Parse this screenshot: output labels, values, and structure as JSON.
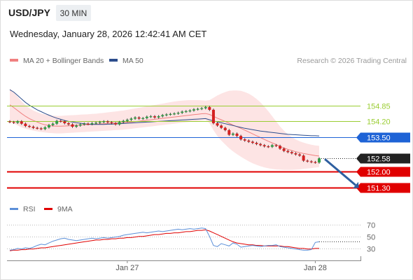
{
  "header": {
    "symbol": "USD/JPY",
    "timeframe": "30 MIN",
    "datetime": "Wednesday, January 28, 2026 12:42:41 AM CET"
  },
  "colors": {
    "ma20": "#f08080",
    "ma50": "#2c4d8c",
    "bollinger_fill": "#fde4e4",
    "level_green": "#9acd32",
    "level_blue": "#1e63d6",
    "level_red": "#e00000",
    "level_dark": "#222222",
    "candle_up": "#2ea043",
    "candle_down": "#d42020",
    "rsi": "#5b8fd8",
    "rsi_ma": "#e00000",
    "arrow": "#2e5fa0"
  },
  "chart_data": [
    {
      "type": "line",
      "panel": "price",
      "legend": [
        {
          "label": "MA 20 + Bollinger Bands"
        },
        {
          "label": "MA 50"
        }
      ],
      "watermark": "Research © 2026 Trading Central",
      "ylim": [
        150.8,
        156.1
      ],
      "x_tick_labels": [
        {
          "label": "Jan 27",
          "index": 30
        },
        {
          "label": "Jan 28",
          "index": 78
        }
      ],
      "n_bars": 80,
      "levels": [
        {
          "value": 154.85,
          "label": "154.85",
          "style": "green"
        },
        {
          "value": 154.2,
          "label": "154.20",
          "style": "green"
        },
        {
          "value": 153.5,
          "label": "153.50",
          "style": "blue"
        },
        {
          "value": 152.58,
          "label": "152.58",
          "style": "dark"
        },
        {
          "value": 152.0,
          "label": "152.00",
          "style": "red"
        },
        {
          "value": 151.3,
          "label": "151.30",
          "style": "red"
        }
      ],
      "close": [
        154.15,
        154.12,
        154.18,
        154.08,
        153.98,
        153.95,
        153.9,
        153.88,
        153.85,
        153.92,
        154.02,
        154.08,
        154.2,
        154.18,
        154.1,
        154.05,
        153.95,
        154.0,
        154.05,
        154.08,
        154.06,
        154.1,
        154.12,
        154.15,
        154.18,
        154.14,
        154.1,
        154.05,
        154.15,
        154.2,
        154.25,
        154.3,
        154.35,
        154.3,
        154.32,
        154.38,
        154.4,
        154.35,
        154.4,
        154.45,
        154.48,
        154.5,
        154.52,
        154.55,
        154.6,
        154.62,
        154.65,
        154.7,
        154.72,
        154.75,
        154.8,
        154.68,
        154.1,
        154.0,
        153.9,
        153.8,
        153.6,
        153.65,
        153.55,
        153.4,
        153.35,
        153.3,
        153.25,
        153.2,
        153.15,
        153.1,
        153.08,
        153.15,
        153.12,
        153.0,
        152.9,
        152.85,
        152.8,
        152.75,
        152.7,
        152.48,
        152.45,
        152.42,
        152.4,
        152.58
      ],
      "ma50": [
        155.55,
        155.45,
        155.3,
        155.15,
        155.0,
        154.88,
        154.78,
        154.68,
        154.6,
        154.52,
        154.45,
        154.38,
        154.32,
        154.27,
        154.22,
        154.18,
        154.15,
        154.12,
        154.1,
        154.08,
        154.06,
        154.05,
        154.05,
        154.05,
        154.05,
        154.06,
        154.06,
        154.07,
        154.08,
        154.09,
        154.1,
        154.11,
        154.12,
        154.13,
        154.14,
        154.15,
        154.16,
        154.17,
        154.18,
        154.19,
        154.2,
        154.21,
        154.22,
        154.23,
        154.24,
        154.25,
        154.26,
        154.27,
        154.28,
        154.29,
        154.3,
        154.25,
        154.2,
        154.16,
        154.12,
        154.08,
        154.04,
        154.0,
        153.96,
        153.92,
        153.88,
        153.85,
        153.82,
        153.79,
        153.76,
        153.74,
        153.72,
        153.7,
        153.68,
        153.66,
        153.64,
        153.62,
        153.61,
        153.6,
        153.59,
        153.58,
        153.57,
        153.56,
        153.56,
        153.55
      ],
      "ma20": [
        154.9,
        154.78,
        154.65,
        154.52,
        154.4,
        154.3,
        154.22,
        154.15,
        154.08,
        154.03,
        154.0,
        153.98,
        153.97,
        153.97,
        153.98,
        153.99,
        154.0,
        154.01,
        154.02,
        154.03,
        154.04,
        154.05,
        154.06,
        154.07,
        154.08,
        154.09,
        154.1,
        154.11,
        154.12,
        154.13,
        154.14,
        154.15,
        154.17,
        154.19,
        154.21,
        154.23,
        154.25,
        154.27,
        154.29,
        154.31,
        154.33,
        154.35,
        154.37,
        154.39,
        154.41,
        154.43,
        154.45,
        154.47,
        154.49,
        154.51,
        154.52,
        154.48,
        154.4,
        154.32,
        154.25,
        154.18,
        154.1,
        154.02,
        153.95,
        153.88,
        153.8,
        153.72,
        153.64,
        153.56,
        153.48,
        153.4,
        153.32,
        153.25,
        153.18,
        153.1,
        153.03,
        152.97,
        152.92,
        152.87,
        152.83,
        152.79,
        152.76,
        152.73,
        152.7,
        152.68
      ],
      "bb_upper": [
        155.6,
        155.45,
        155.25,
        155.05,
        154.88,
        154.75,
        154.65,
        154.58,
        154.52,
        154.48,
        154.45,
        154.43,
        154.42,
        154.42,
        154.43,
        154.44,
        154.45,
        154.46,
        154.47,
        154.48,
        154.49,
        154.5,
        154.51,
        154.53,
        154.55,
        154.57,
        154.59,
        154.61,
        154.63,
        154.65,
        154.68,
        154.71,
        154.74,
        154.77,
        154.8,
        154.83,
        154.86,
        154.89,
        154.92,
        154.95,
        154.98,
        155.01,
        155.04,
        155.06,
        155.08,
        155.09,
        155.1,
        155.1,
        155.1,
        155.09,
        155.08,
        155.1,
        155.2,
        155.3,
        155.38,
        155.45,
        155.5,
        155.52,
        155.52,
        155.5,
        155.45,
        155.38,
        155.28,
        155.15,
        155.0,
        154.82,
        154.62,
        154.4,
        154.18,
        153.96,
        153.78,
        153.62,
        153.5,
        153.4,
        153.32,
        153.26,
        153.21,
        153.17,
        153.14,
        153.12
      ],
      "bb_lower": [
        154.2,
        154.1,
        154.0,
        153.92,
        153.86,
        153.82,
        153.78,
        153.75,
        153.72,
        153.7,
        153.68,
        153.67,
        153.66,
        153.66,
        153.67,
        153.68,
        153.69,
        153.7,
        153.71,
        153.72,
        153.73,
        153.74,
        153.75,
        153.76,
        153.77,
        153.78,
        153.79,
        153.8,
        153.81,
        153.82,
        153.84,
        153.86,
        153.88,
        153.9,
        153.92,
        153.94,
        153.96,
        153.98,
        154.0,
        154.02,
        154.04,
        154.06,
        154.08,
        154.1,
        154.12,
        154.14,
        154.16,
        154.18,
        154.2,
        154.22,
        154.24,
        154.1,
        153.8,
        153.55,
        153.35,
        153.18,
        153.02,
        152.88,
        152.76,
        152.65,
        152.55,
        152.45,
        152.37,
        152.3,
        152.24,
        152.19,
        152.15,
        152.12,
        152.1,
        152.09,
        152.08,
        152.08,
        152.08,
        152.09,
        152.1,
        152.12,
        152.14,
        152.16,
        152.18,
        152.2
      ],
      "forecast_arrow": {
        "from": 152.58,
        "to": 151.3
      }
    },
    {
      "type": "line",
      "panel": "rsi",
      "legend": [
        {
          "label": "RSI"
        },
        {
          "label": "9MA"
        }
      ],
      "ylim": [
        10,
        80
      ],
      "y_ticks": [
        70,
        50,
        30
      ],
      "rsi": [
        27,
        28,
        30,
        29,
        31,
        30,
        32,
        35,
        37,
        36,
        39,
        42,
        44,
        46,
        47,
        45,
        44,
        43,
        44,
        45,
        46,
        47,
        46,
        47,
        48,
        47,
        48,
        49,
        50,
        52,
        53,
        54,
        55,
        56,
        57,
        56,
        57,
        58,
        59,
        58,
        59,
        60,
        61,
        62,
        61,
        62,
        63,
        62,
        63,
        64,
        63,
        50,
        35,
        33,
        38,
        36,
        34,
        39,
        37,
        32,
        33,
        34,
        35,
        34,
        33,
        34,
        35,
        35,
        36,
        33,
        32,
        31,
        30,
        29,
        28,
        27,
        27,
        28,
        40,
        41
      ],
      "rsi_ma": [
        26,
        27,
        27,
        28,
        28,
        29,
        29,
        30,
        31,
        31,
        32,
        33,
        34,
        35,
        36,
        37,
        38,
        39,
        40,
        41,
        42,
        43,
        44,
        44,
        45,
        45,
        46,
        46,
        47,
        47,
        48,
        48,
        49,
        50,
        50,
        51,
        52,
        53,
        53,
        54,
        55,
        55,
        56,
        56,
        57,
        58,
        58,
        59,
        60,
        60,
        61,
        59,
        56,
        53,
        50,
        47,
        44,
        41,
        39,
        38,
        37,
        36,
        36,
        35,
        35,
        34,
        34,
        34,
        34,
        34,
        33,
        33,
        32,
        31,
        30,
        30,
        29,
        29,
        30,
        30
      ]
    }
  ]
}
